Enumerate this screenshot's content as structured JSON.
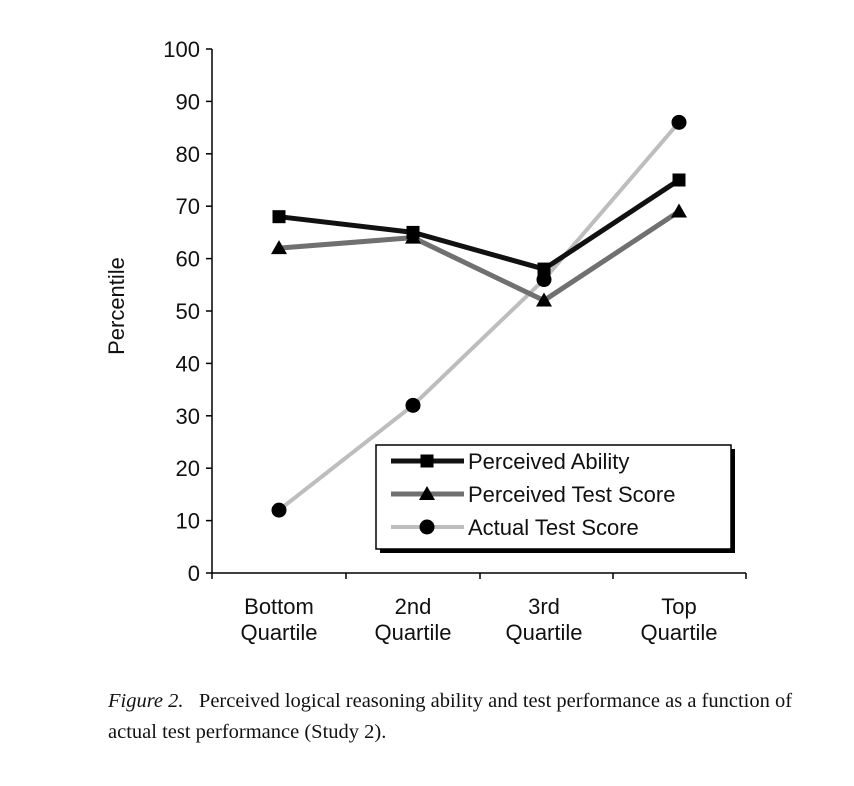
{
  "chart_data": {
    "type": "line",
    "categories": [
      [
        "Bottom",
        "Quartile"
      ],
      [
        "2nd",
        "Quartile"
      ],
      [
        "3rd",
        "Quartile"
      ],
      [
        "Top",
        "Quartile"
      ]
    ],
    "ylabel": "Percentile",
    "xlabel": "",
    "ylim": [
      0,
      100
    ],
    "yticks": [
      0,
      10,
      20,
      30,
      40,
      50,
      60,
      70,
      80,
      90,
      100
    ],
    "grid": false,
    "legend_position": "bottom-right",
    "series": [
      {
        "name": "Perceived Ability",
        "values": [
          68,
          65,
          58,
          75
        ],
        "marker": "square",
        "color": "#111111"
      },
      {
        "name": "Perceived Test Score",
        "values": [
          62,
          64,
          52,
          69
        ],
        "marker": "triangle",
        "color": "#6e6e6e"
      },
      {
        "name": "Actual Test Score",
        "values": [
          12,
          32,
          56,
          86
        ],
        "marker": "circle",
        "color": "#c2c2c2"
      }
    ]
  },
  "caption": {
    "label": "Figure 2.",
    "text": "Perceived logical reasoning ability and test performance as a function of actual test performance (Study 2)."
  }
}
